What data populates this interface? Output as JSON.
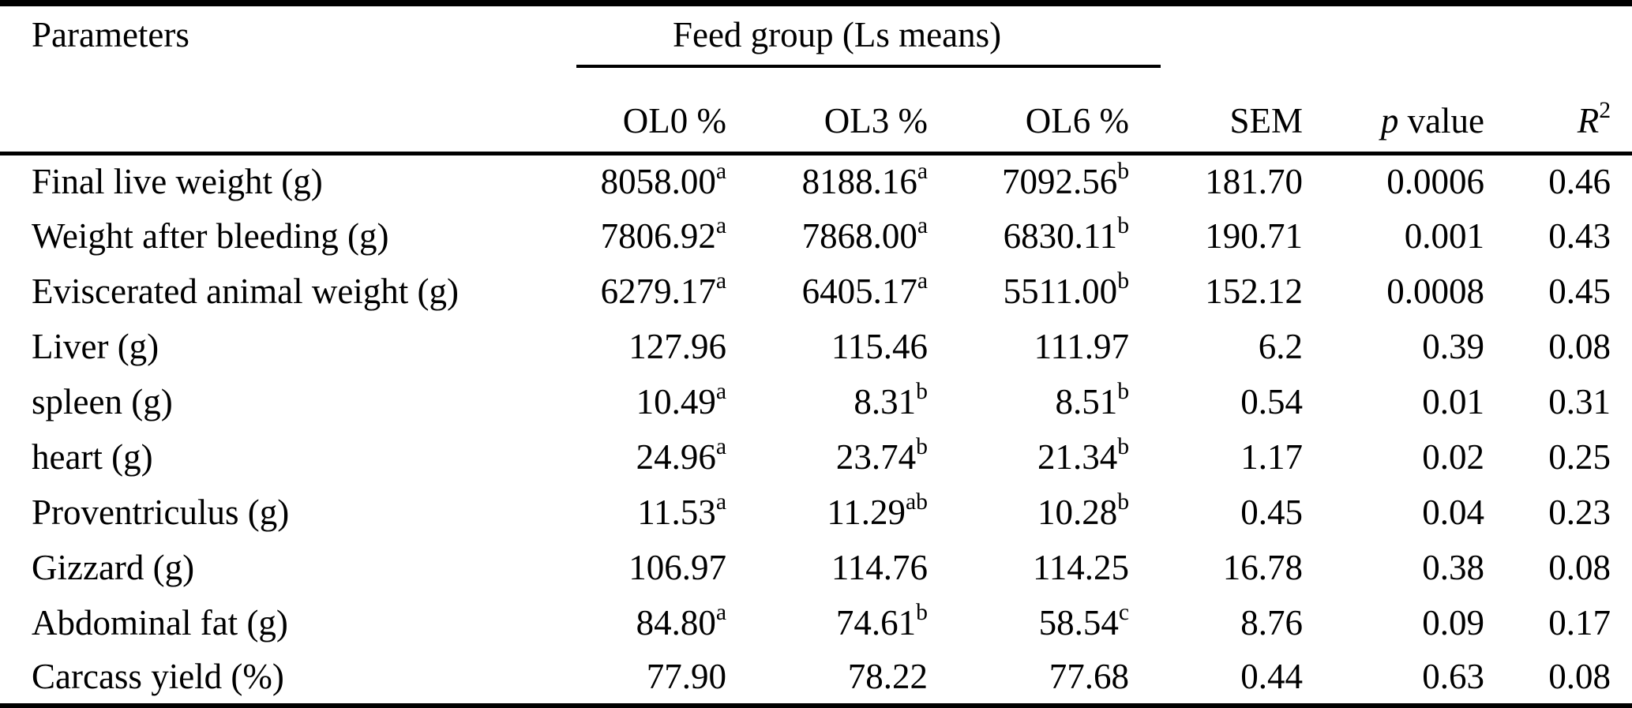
{
  "colors": {
    "background": "#ffffff",
    "text": "#000000",
    "rule": "#000000"
  },
  "table": {
    "header": {
      "parameters": "Parameters",
      "feed_group": "Feed group (Ls means)",
      "group_cols": [
        "OL0 %",
        "OL3 %",
        "OL6 %"
      ],
      "sem": "SEM",
      "p_italic": "p",
      "p_rest": " value",
      "r_letter": "R",
      "r_sup": "2"
    },
    "rows": [
      {
        "label": "Final live weight (g)",
        "cells": [
          {
            "v": "8058.00",
            "sup": "a"
          },
          {
            "v": "8188.16",
            "sup": "a"
          },
          {
            "v": "7092.56",
            "sup": "b"
          },
          {
            "v": "181.70"
          },
          {
            "v": "0.0006"
          },
          {
            "v": "0.46"
          }
        ]
      },
      {
        "label": "Weight after bleeding (g)",
        "cells": [
          {
            "v": "7806.92",
            "sup": "a"
          },
          {
            "v": "7868.00",
            "sup": "a"
          },
          {
            "v": "6830.11",
            "sup": "b"
          },
          {
            "v": "190.71"
          },
          {
            "v": "0.001"
          },
          {
            "v": "0.43"
          }
        ]
      },
      {
        "label": "Eviscerated animal weight (g)",
        "cells": [
          {
            "v": "6279.17",
            "sup": "a"
          },
          {
            "v": "6405.17",
            "sup": "a"
          },
          {
            "v": "5511.00",
            "sup": "b"
          },
          {
            "v": "152.12"
          },
          {
            "v": "0.0008"
          },
          {
            "v": "0.45"
          }
        ]
      },
      {
        "label": "Liver (g)",
        "cells": [
          {
            "v": "127.96"
          },
          {
            "v": "115.46"
          },
          {
            "v": "111.97"
          },
          {
            "v": "6.2"
          },
          {
            "v": "0.39"
          },
          {
            "v": "0.08"
          }
        ]
      },
      {
        "label": "spleen (g)",
        "cells": [
          {
            "v": "10.49",
            "sup": "a"
          },
          {
            "v": "8.31",
            "sup": "b"
          },
          {
            "v": "8.51",
            "sup": "b"
          },
          {
            "v": "0.54"
          },
          {
            "v": "0.01"
          },
          {
            "v": "0.31"
          }
        ]
      },
      {
        "label": "heart (g)",
        "cells": [
          {
            "v": "24.96",
            "sup": "a"
          },
          {
            "v": "23.74",
            "sup": "b"
          },
          {
            "v": "21.34",
            "sup": "b"
          },
          {
            "v": "1.17"
          },
          {
            "v": "0.02"
          },
          {
            "v": "0.25"
          }
        ]
      },
      {
        "label": "Proventriculus (g)",
        "cells": [
          {
            "v": "11.53",
            "sup": "a"
          },
          {
            "v": "11.29",
            "sup": "ab"
          },
          {
            "v": "10.28",
            "sup": "b"
          },
          {
            "v": "0.45"
          },
          {
            "v": "0.04"
          },
          {
            "v": "0.23"
          }
        ]
      },
      {
        "label": "Gizzard (g)",
        "cells": [
          {
            "v": "106.97"
          },
          {
            "v": "114.76"
          },
          {
            "v": "114.25"
          },
          {
            "v": "16.78"
          },
          {
            "v": "0.38"
          },
          {
            "v": "0.08"
          }
        ]
      },
      {
        "label": "Abdominal fat (g)",
        "cells": [
          {
            "v": "84.80",
            "sup": "a"
          },
          {
            "v": "74.61",
            "sup": "b"
          },
          {
            "v": "58.54",
            "sup": "c"
          },
          {
            "v": "8.76"
          },
          {
            "v": "0.09"
          },
          {
            "v": "0.17"
          }
        ]
      },
      {
        "label": "Carcass yield (%)",
        "cells": [
          {
            "v": "77.90"
          },
          {
            "v": "78.22"
          },
          {
            "v": "77.68"
          },
          {
            "v": "0.44"
          },
          {
            "v": "0.63"
          },
          {
            "v": "0.08"
          }
        ]
      }
    ]
  }
}
